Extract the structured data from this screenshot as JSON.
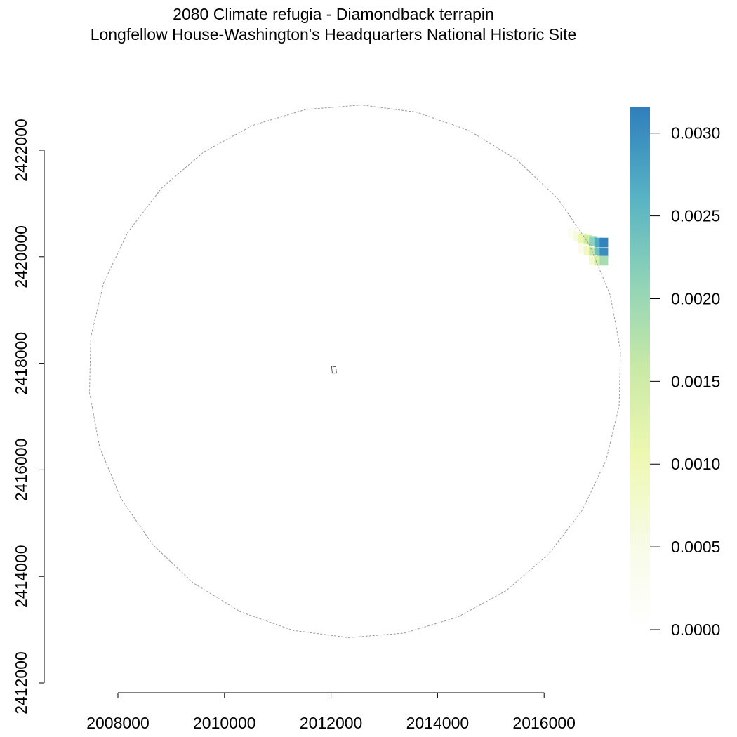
{
  "title": {
    "line1": "2080 Climate refugia - Diamondback terrapin",
    "line2": "Longfellow House-Washington's Headquarters National Historic Site"
  },
  "chart_data": {
    "type": "heatmap",
    "x_axis": {
      "ticks": [
        2008000,
        2010000,
        2012000,
        2014000,
        2016000
      ],
      "tick_labels": [
        "2008000",
        "2010000",
        "2012000",
        "2014000",
        "2016000"
      ]
    },
    "y_axis": {
      "ticks": [
        2412000,
        2414000,
        2416000,
        2418000,
        2420000,
        2422000
      ],
      "tick_labels": [
        "2412000",
        "2414000",
        "2416000",
        "2418000",
        "2420000",
        "2422000"
      ]
    },
    "legend": {
      "position": "right",
      "min": 0.0,
      "max": 0.00316,
      "ticks": [
        0.0,
        0.0005,
        0.001,
        0.0015,
        0.002,
        0.0025,
        0.003
      ],
      "tick_labels": [
        "0.0000",
        "0.0005",
        "0.0010",
        "0.0015",
        "0.0020",
        "0.0025",
        "0.0030"
      ],
      "color_stops": [
        "#ffffff",
        "#f7fbe6",
        "#eef8b0",
        "#c9e9a6",
        "#8ed3b8",
        "#55b1c4",
        "#2f7ebc"
      ]
    },
    "buffer_circle": {
      "center": [
        2012450,
        2417850
      ],
      "radius": 5000,
      "style": "dashed gray"
    },
    "park_boundary": {
      "center": [
        2012050,
        2417880
      ],
      "style": "solid dark gray"
    },
    "raster_cells": [
      {
        "x": 2016500,
        "y": 2420480,
        "v": 0.0003
      },
      {
        "x": 2016600,
        "y": 2420420,
        "v": 0.0006
      },
      {
        "x": 2016700,
        "y": 2420380,
        "v": 0.0011
      },
      {
        "x": 2016800,
        "y": 2420350,
        "v": 0.0015
      },
      {
        "x": 2016900,
        "y": 2420330,
        "v": 0.0021
      },
      {
        "x": 2017000,
        "y": 2420300,
        "v": 0.0027
      },
      {
        "x": 2017100,
        "y": 2420300,
        "v": 0.0031
      },
      {
        "x": 2016700,
        "y": 2420180,
        "v": 0.0004
      },
      {
        "x": 2016800,
        "y": 2420150,
        "v": 0.0009
      },
      {
        "x": 2016900,
        "y": 2420120,
        "v": 0.0016
      },
      {
        "x": 2017000,
        "y": 2420100,
        "v": 0.0024
      },
      {
        "x": 2017100,
        "y": 2420100,
        "v": 0.003
      },
      {
        "x": 2016900,
        "y": 2419980,
        "v": 0.0008
      },
      {
        "x": 2017000,
        "y": 2419960,
        "v": 0.0014
      },
      {
        "x": 2017100,
        "y": 2419960,
        "v": 0.0019
      }
    ]
  }
}
